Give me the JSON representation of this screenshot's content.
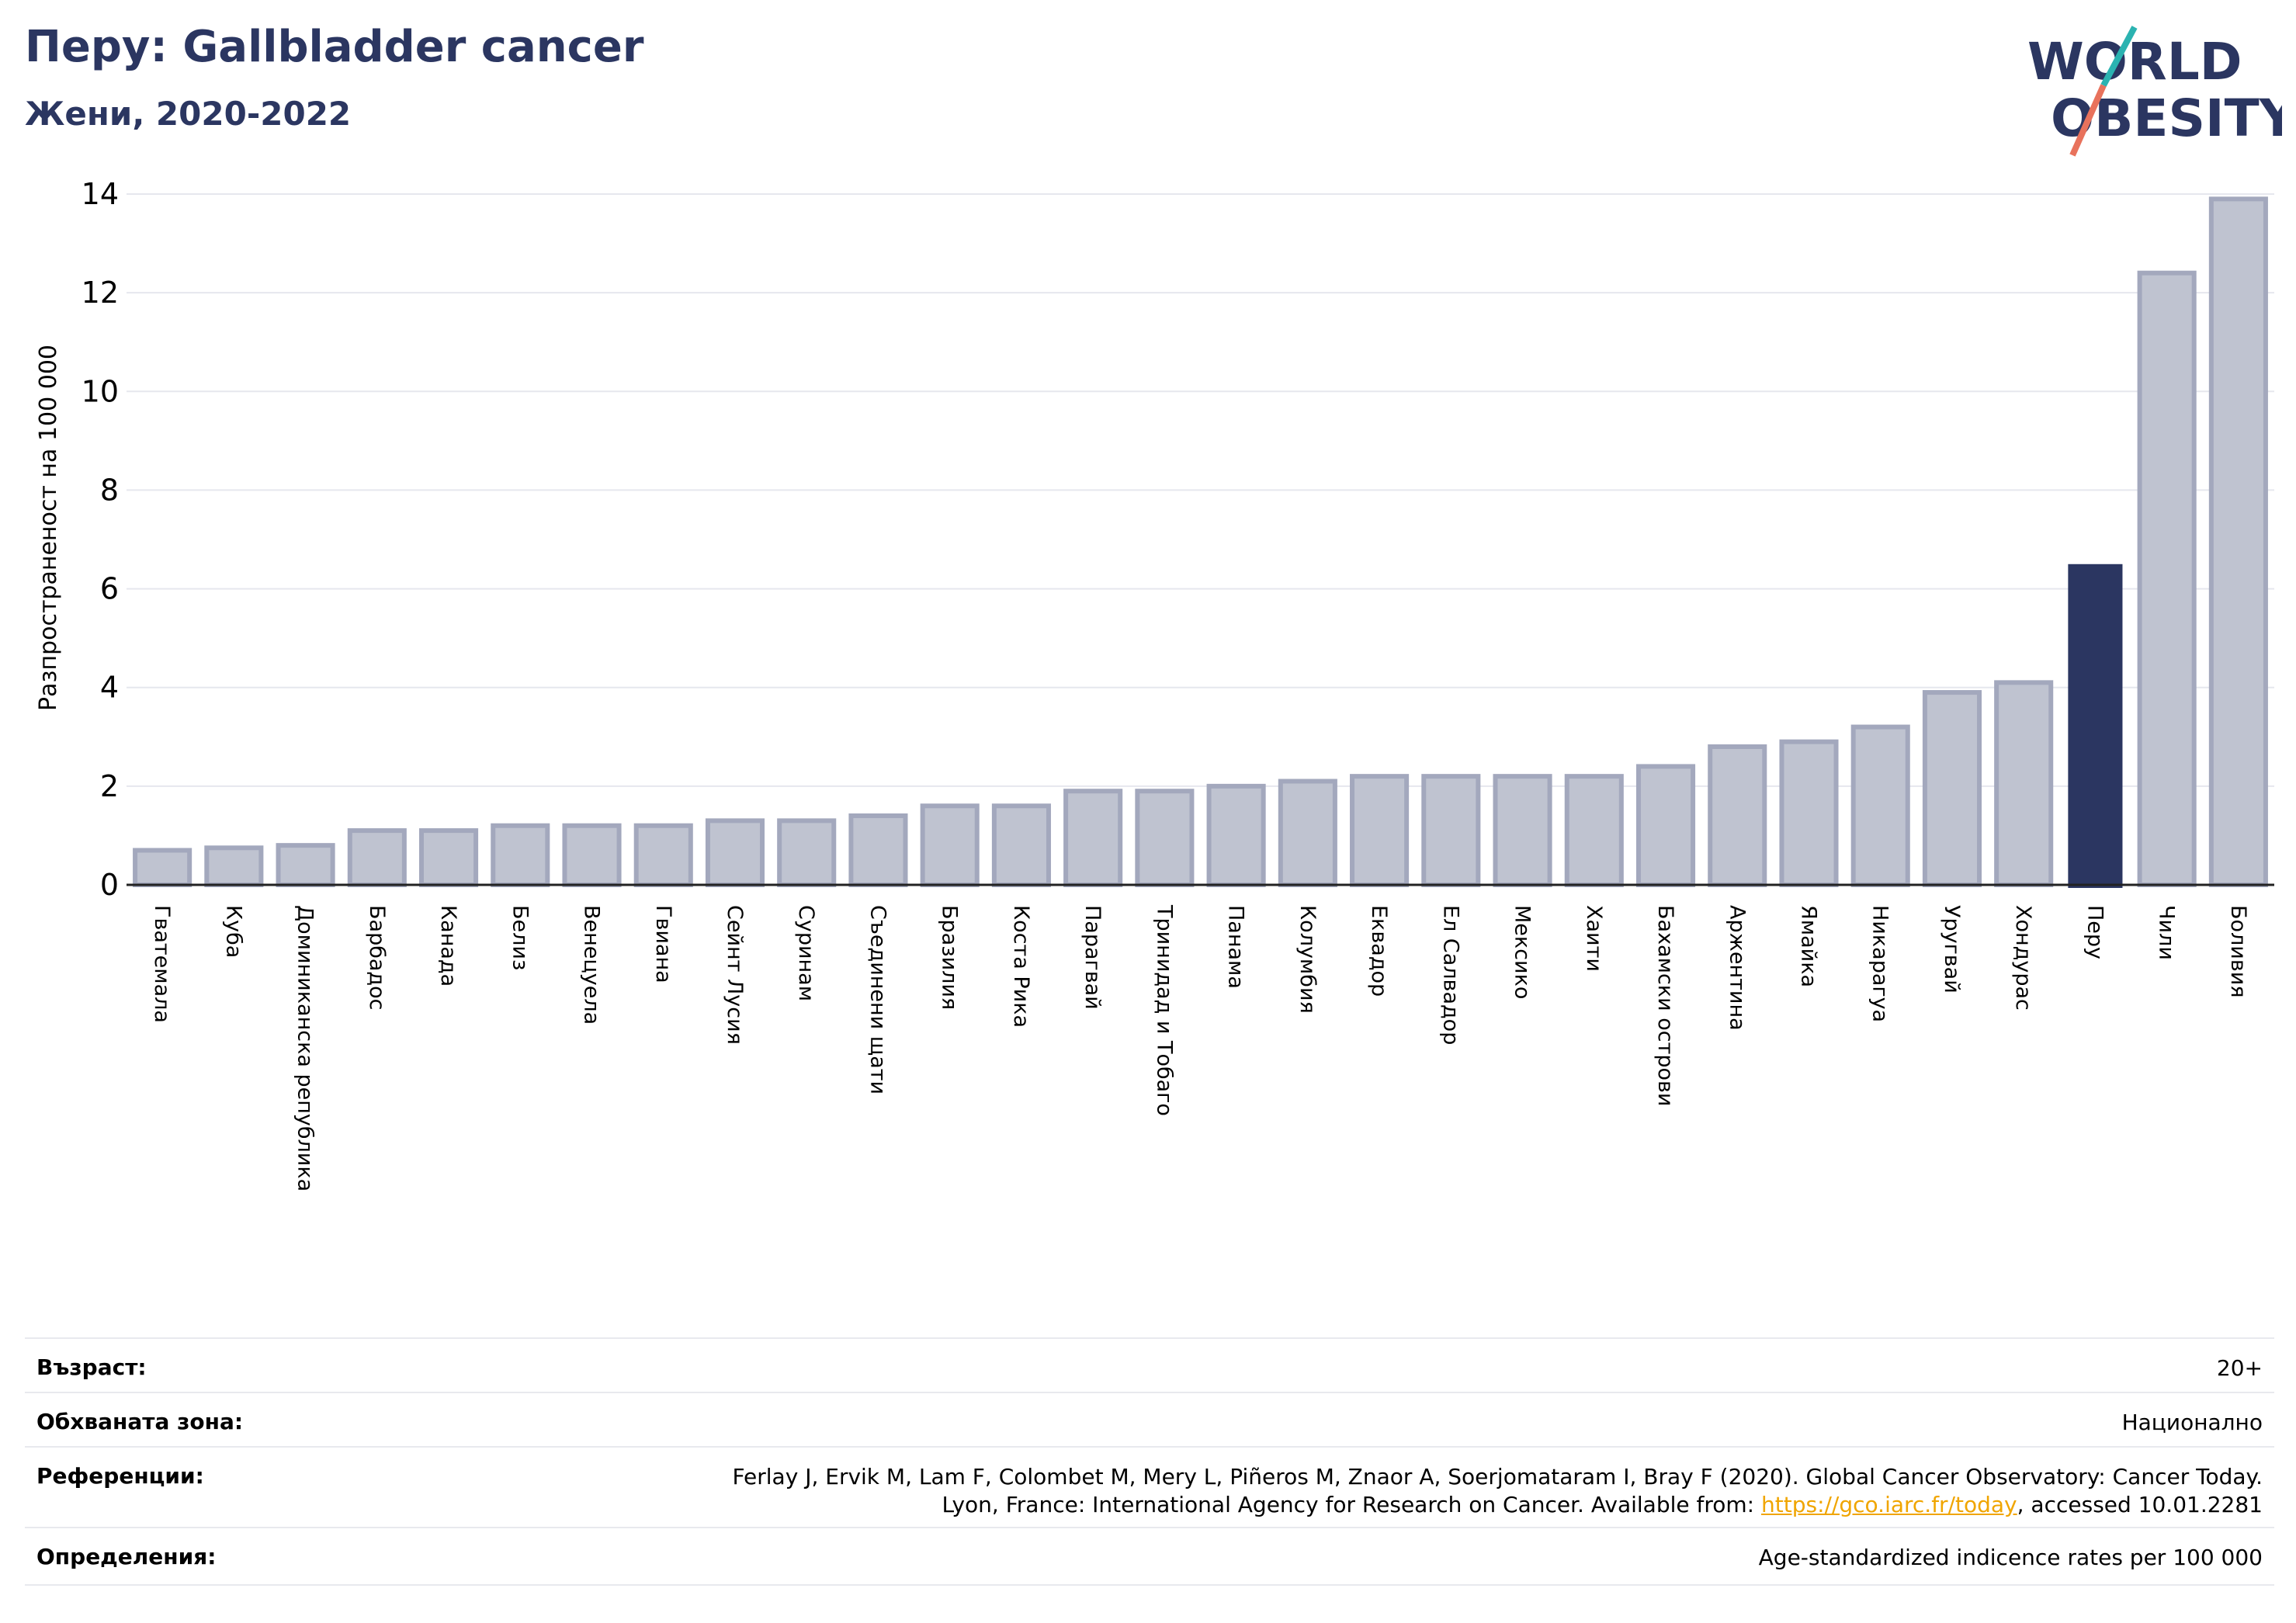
{
  "header": {
    "title": "Перу: Gallbladder cancer",
    "subtitle": "Жени, 2020-2022"
  },
  "logo": {
    "line1": "WORLD",
    "line2": "OBESITY",
    "slash_colors": [
      "#2bb3b1",
      "#e8725c"
    ],
    "text_color": "#2b3661"
  },
  "chart_data": {
    "type": "bar",
    "ylabel": "Разпространеност  на 100 000",
    "ylim": [
      0,
      14
    ],
    "yticks": [
      0,
      2,
      4,
      6,
      8,
      10,
      12,
      14
    ],
    "grid": true,
    "highlight": "Перу",
    "colors": {
      "bar": "#bfc3d0",
      "bar_edge": "#a3a8bd",
      "highlight": "#2b3661",
      "grid": "#e6e7ee"
    },
    "categories": [
      "Гватемала",
      "Куба",
      "Доминиканска република",
      "Барбадос",
      "Канада",
      "Белиз",
      "Венецуела",
      "Гвиана",
      "Сейнт Лусия",
      "Суринам",
      "Съединени щати",
      "Бразилия",
      "Коста Рика",
      "Парагвай",
      "Тринидад и Тобаго",
      "Панама",
      "Колумбия",
      "Еквадор",
      "Ел Салвадор",
      "Мексико",
      "Хаити",
      "Бахамски острови",
      "Аржентина",
      "Ямайка",
      "Никарагуа",
      "Уругвай",
      "Хондурас",
      "Перу",
      "Чили",
      "Боливия"
    ],
    "values": [
      0.7,
      0.75,
      0.8,
      1.1,
      1.1,
      1.2,
      1.2,
      1.2,
      1.3,
      1.3,
      1.4,
      1.6,
      1.6,
      1.9,
      1.9,
      2.0,
      2.1,
      2.2,
      2.2,
      2.2,
      2.2,
      2.4,
      2.8,
      2.9,
      3.2,
      3.9,
      4.1,
      6.5,
      12.4,
      13.9
    ]
  },
  "info": {
    "age_label": "Възраст:",
    "age_value": "20+",
    "area_label": "Обхваната зона:",
    "area_value": "Национално",
    "refs_label": "Референции:",
    "refs_line1": "Ferlay J, Ervik M, Lam F, Colombet M, Mery L, Piñeros M, Znaor A, Soerjomataram I, Bray F (2020). Global Cancer Observatory: Cancer Today.",
    "refs_line2_prefix": "Lyon, France: International Agency for Research on Cancer. Available from: ",
    "refs_link": "https://gco.iarc.fr/today",
    "refs_line2_suffix": ", accessed 10.01.2281",
    "defs_label": "Определения:",
    "defs_value": "Age-standardized indicence rates per 100 000"
  }
}
